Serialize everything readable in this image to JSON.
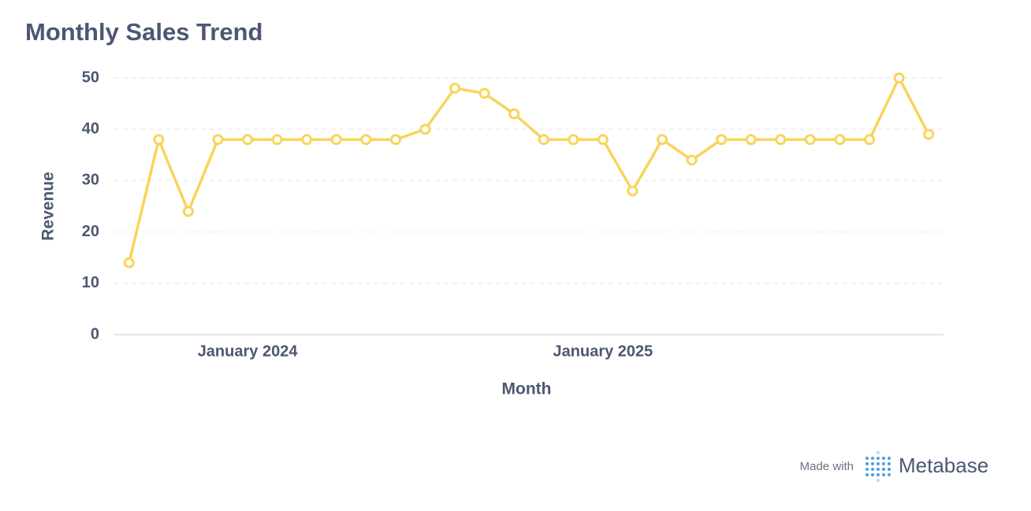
{
  "chart_data": {
    "type": "line",
    "title": "Monthly Sales Trend",
    "x_label": "Month",
    "y_label": "Revenue",
    "x": [
      "2023-09",
      "2023-10",
      "2023-11",
      "2023-12",
      "2024-01",
      "2024-02",
      "2024-03",
      "2024-04",
      "2024-05",
      "2024-06",
      "2024-07",
      "2024-08",
      "2024-09",
      "2024-10",
      "2024-11",
      "2024-12",
      "2025-01",
      "2025-02",
      "2025-03",
      "2025-04",
      "2025-05",
      "2025-06",
      "2025-07",
      "2025-08",
      "2025-09",
      "2025-10",
      "2025-11",
      "2025-12"
    ],
    "xticks": [
      {
        "value": "2024-01",
        "label": "January 2024"
      },
      {
        "value": "2025-01",
        "label": "January 2025"
      }
    ],
    "series": [
      {
        "name": "Revenue",
        "color": "#F9D45C",
        "values": [
          14,
          38,
          24,
          38,
          38,
          38,
          38,
          38,
          38,
          38,
          40,
          48,
          47,
          43,
          38,
          38,
          38,
          28,
          38,
          34,
          38,
          38,
          38,
          38,
          38,
          38,
          50,
          39
        ]
      }
    ],
    "ylim": [
      0,
      50
    ],
    "yticks": [
      0,
      10,
      20,
      30,
      40,
      50
    ],
    "grid": true
  },
  "footer": {
    "made_with": "Made with",
    "brand": "Metabase"
  }
}
